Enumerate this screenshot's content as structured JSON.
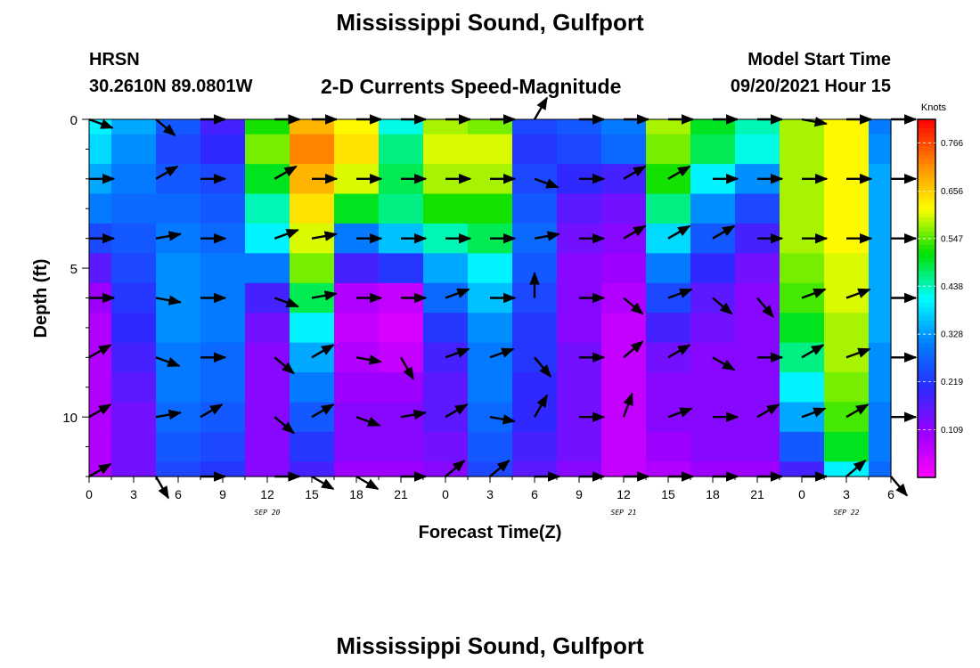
{
  "header": {
    "title": "Mississippi Sound, Gulfport",
    "station": "HRSN",
    "coordinates": "30.2610N  89.0801W",
    "subtitle": "2-D Currents Speed-Magnitude",
    "model_start_label": "Model Start Time",
    "model_start_value": "09/20/2021 Hour 15",
    "bottom_title": "Mississippi Sound, Gulfport"
  },
  "chart_data": {
    "type": "heatmap",
    "xlabel": "Forecast Time(Z)",
    "ylabel": "Depth (ft)",
    "x_range_hours": [
      0,
      54
    ],
    "y_range_ft": [
      0,
      12
    ],
    "x_ticks": [
      {
        "h": 0,
        "label": "0"
      },
      {
        "h": 3,
        "label": "3"
      },
      {
        "h": 6,
        "label": "6"
      },
      {
        "h": 9,
        "label": "9"
      },
      {
        "h": 12,
        "label": "12"
      },
      {
        "h": 15,
        "label": "15"
      },
      {
        "h": 18,
        "label": "18"
      },
      {
        "h": 21,
        "label": "21"
      },
      {
        "h": 24,
        "label": "0"
      },
      {
        "h": 27,
        "label": "3"
      },
      {
        "h": 30,
        "label": "6"
      },
      {
        "h": 33,
        "label": "9"
      },
      {
        "h": 36,
        "label": "12"
      },
      {
        "h": 39,
        "label": "15"
      },
      {
        "h": 42,
        "label": "18"
      },
      {
        "h": 45,
        "label": "21"
      },
      {
        "h": 48,
        "label": "0"
      },
      {
        "h": 51,
        "label": "3"
      },
      {
        "h": 54,
        "label": "6"
      }
    ],
    "date_labels": [
      {
        "h": 12,
        "label": "SEP 20"
      },
      {
        "h": 36,
        "label": "SEP 21"
      },
      {
        "h": 51,
        "label": "SEP 22"
      }
    ],
    "y_ticks": [
      {
        "ft": 0,
        "label": "0"
      },
      {
        "ft": 5,
        "label": "5"
      },
      {
        "ft": 10,
        "label": "10"
      }
    ],
    "colorbar": {
      "unit": "Knots",
      "range": [
        0,
        0.82
      ],
      "labels": [
        "0.766",
        "0.656",
        "0.547",
        "0.438",
        "0.328",
        "0.219",
        "0.109"
      ],
      "label_values": [
        0.766,
        0.656,
        0.547,
        0.438,
        0.328,
        0.219,
        0.109
      ],
      "colors": [
        "#ff00ff",
        "#9b00ff",
        "#2b2bff",
        "#0080ff",
        "#00ffff",
        "#00e000",
        "#ffff00",
        "#ff8800",
        "#ff0000"
      ]
    },
    "depth_layers_ft": [
      0,
      1,
      2,
      3,
      4,
      5,
      6,
      7,
      8,
      9,
      10,
      11,
      12
    ],
    "time_hours": [
      0,
      3,
      6,
      9,
      12,
      15,
      18,
      21,
      24,
      27,
      30,
      33,
      36,
      39,
      42,
      45,
      48,
      51,
      54
    ],
    "speed_knots": [
      [
        0.4,
        0.34,
        0.26,
        0.18,
        0.52,
        0.68,
        0.62,
        0.42,
        0.58,
        0.56,
        0.24,
        0.26,
        0.3,
        0.58,
        0.5,
        0.44,
        0.58,
        0.62,
        0.3
      ],
      [
        0.38,
        0.32,
        0.24,
        0.2,
        0.56,
        0.72,
        0.64,
        0.46,
        0.6,
        0.6,
        0.22,
        0.24,
        0.28,
        0.56,
        0.48,
        0.42,
        0.58,
        0.62,
        0.32
      ],
      [
        0.34,
        0.3,
        0.26,
        0.24,
        0.5,
        0.68,
        0.6,
        0.48,
        0.58,
        0.58,
        0.24,
        0.2,
        0.18,
        0.52,
        0.4,
        0.32,
        0.58,
        0.62,
        0.34
      ],
      [
        0.3,
        0.28,
        0.28,
        0.26,
        0.44,
        0.64,
        0.5,
        0.46,
        0.52,
        0.52,
        0.26,
        0.16,
        0.14,
        0.46,
        0.32,
        0.24,
        0.58,
        0.62,
        0.34
      ],
      [
        0.24,
        0.26,
        0.3,
        0.28,
        0.4,
        0.6,
        0.3,
        0.36,
        0.44,
        0.48,
        0.28,
        0.14,
        0.12,
        0.38,
        0.26,
        0.18,
        0.58,
        0.62,
        0.34
      ],
      [
        0.16,
        0.24,
        0.32,
        0.3,
        0.3,
        0.56,
        0.18,
        0.22,
        0.34,
        0.4,
        0.26,
        0.12,
        0.1,
        0.3,
        0.2,
        0.14,
        0.56,
        0.6,
        0.34
      ],
      [
        0.1,
        0.22,
        0.32,
        0.3,
        0.18,
        0.48,
        0.08,
        0.06,
        0.28,
        0.36,
        0.24,
        0.12,
        0.08,
        0.24,
        0.16,
        0.12,
        0.54,
        0.6,
        0.34
      ],
      [
        0.08,
        0.2,
        0.32,
        0.3,
        0.14,
        0.4,
        0.06,
        0.04,
        0.22,
        0.32,
        0.22,
        0.12,
        0.06,
        0.18,
        0.14,
        0.12,
        0.5,
        0.58,
        0.34
      ],
      [
        0.08,
        0.18,
        0.3,
        0.28,
        0.12,
        0.34,
        0.08,
        0.06,
        0.18,
        0.3,
        0.22,
        0.14,
        0.06,
        0.14,
        0.12,
        0.12,
        0.46,
        0.58,
        0.32
      ],
      [
        0.08,
        0.16,
        0.3,
        0.28,
        0.12,
        0.3,
        0.1,
        0.1,
        0.16,
        0.3,
        0.2,
        0.14,
        0.06,
        0.12,
        0.12,
        0.12,
        0.4,
        0.56,
        0.32
      ],
      [
        0.08,
        0.14,
        0.28,
        0.26,
        0.12,
        0.26,
        0.12,
        0.12,
        0.16,
        0.28,
        0.2,
        0.14,
        0.06,
        0.12,
        0.12,
        0.12,
        0.34,
        0.54,
        0.3
      ],
      [
        0.08,
        0.14,
        0.26,
        0.24,
        0.12,
        0.22,
        0.12,
        0.12,
        0.14,
        0.26,
        0.18,
        0.14,
        0.06,
        0.1,
        0.12,
        0.12,
        0.26,
        0.5,
        0.3
      ],
      [
        0.08,
        0.14,
        0.24,
        0.22,
        0.12,
        0.18,
        0.1,
        0.1,
        0.12,
        0.24,
        0.16,
        0.12,
        0.06,
        0.08,
        0.1,
        0.1,
        0.18,
        0.4,
        0.28
      ]
    ],
    "vector_times_hours": [
      0,
      4.5,
      7.5,
      12.5,
      15,
      18,
      21,
      24,
      27,
      30,
      33,
      36,
      39,
      42,
      45,
      48,
      51,
      54
    ],
    "vector_depths_ft": [
      0,
      2,
      4,
      6,
      8,
      10,
      12
    ],
    "vector_direction_deg": [
      [
        20,
        40,
        0,
        0,
        0,
        0,
        0,
        0,
        0,
        300,
        0,
        0,
        0,
        0,
        0,
        10,
        0,
        0
      ],
      [
        0,
        330,
        0,
        330,
        0,
        0,
        0,
        0,
        0,
        20,
        0,
        330,
        330,
        0,
        0,
        0,
        0,
        0
      ],
      [
        0,
        350,
        0,
        340,
        350,
        0,
        0,
        0,
        0,
        350,
        0,
        330,
        330,
        330,
        0,
        0,
        0,
        0
      ],
      [
        0,
        10,
        0,
        20,
        350,
        0,
        0,
        340,
        0,
        270,
        0,
        40,
        340,
        40,
        50,
        340,
        340,
        0
      ],
      [
        330,
        20,
        0,
        40,
        330,
        10,
        60,
        340,
        340,
        50,
        0,
        320,
        330,
        30,
        0,
        330,
        340,
        0
      ],
      [
        330,
        350,
        330,
        40,
        330,
        20,
        350,
        330,
        10,
        300,
        0,
        290,
        340,
        0,
        330,
        340,
        330,
        0
      ],
      [
        330,
        60,
        0,
        0,
        30,
        30,
        0,
        320,
        320,
        0,
        0,
        0,
        0,
        0,
        0,
        0,
        320,
        50
      ]
    ]
  }
}
